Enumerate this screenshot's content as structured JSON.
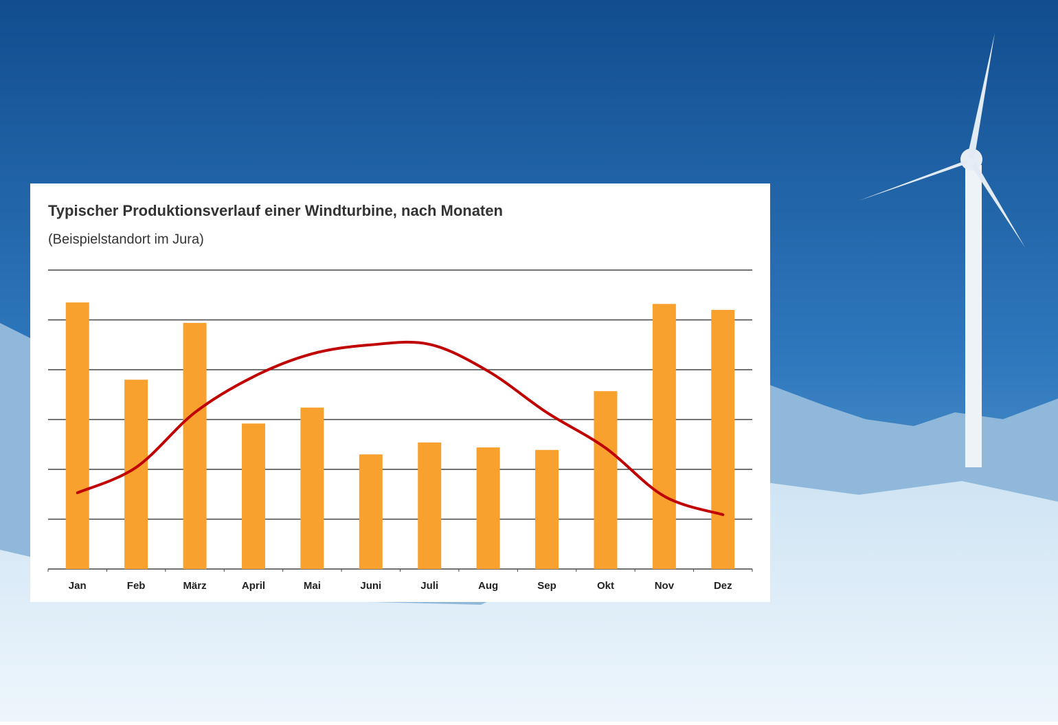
{
  "chart_data": {
    "type": "bar",
    "title": "Typischer Produktionsverlauf einer Windturbine, nach Monaten",
    "subtitle": "(Beispielstandort im Jura)",
    "categories": [
      "Jan",
      "Feb",
      "März",
      "April",
      "Mai",
      "Juni",
      "Juli",
      "Aug",
      "Sep",
      "Okt",
      "Nov",
      "Dez"
    ],
    "series": [
      {
        "type": "bar",
        "color": "#f9a12e",
        "values": [
          5.35,
          3.8,
          4.94,
          2.92,
          3.24,
          2.3,
          2.54,
          2.44,
          2.39,
          3.57,
          5.32,
          5.2
        ]
      },
      {
        "type": "line",
        "color": "#c00000",
        "values": [
          1.53,
          2.04,
          3.14,
          3.86,
          4.32,
          4.5,
          4.51,
          3.97,
          3.14,
          2.43,
          1.46,
          1.09
        ]
      }
    ],
    "ylim": [
      0,
      6
    ],
    "gridlines": [
      1,
      2,
      3,
      4,
      5,
      6
    ],
    "grid": true
  }
}
